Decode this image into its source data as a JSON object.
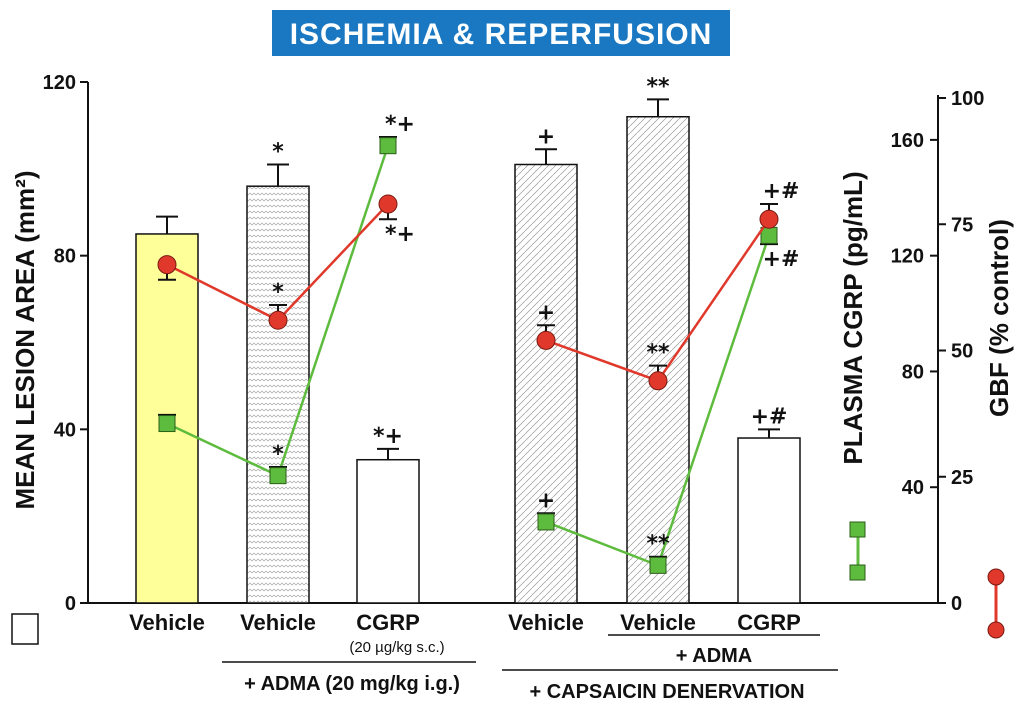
{
  "chart_data": {
    "type": "bar",
    "title": "ISCHEMIA & REPERFUSION",
    "colors": {
      "title_bg": "#1a78c2",
      "title_text": "#ffffff",
      "vehicle_bar": "#ffff99",
      "bar_outline": "#111111",
      "red_line": "#e0392b",
      "red_marker": "#e0392b",
      "green_line": "#5dbb3d",
      "green_marker": "#5dbb3d"
    },
    "categories": [
      "Vehicle",
      "Vehicle",
      "CGRP",
      "Vehicle",
      "Vehicle",
      "CGRP"
    ],
    "category_sublabels": [
      "",
      "",
      "(20 µg/kg s.c.)",
      "",
      "",
      ""
    ],
    "group_labels": {
      "adma_dose": "+ ADMA (20 mg/kg i.g.)",
      "adma": "+ ADMA",
      "capsaicin": "+ CAPSAICIN DENERVATION"
    },
    "left_axis": {
      "label": "MEAN LESION AREA (mm²)",
      "ylim": [
        0,
        120
      ],
      "ticks": [
        "0",
        "40",
        "80",
        "120"
      ],
      "tick_values": [
        0,
        40,
        80,
        120
      ]
    },
    "right_axis_cgrp": {
      "label": "PLASMA CGRP (pg/mL)",
      "ylim": [
        0,
        180
      ],
      "ticks": [
        "40",
        "80",
        "120",
        "160"
      ],
      "tick_values": [
        40,
        80,
        120,
        160
      ]
    },
    "right_axis_gbf": {
      "label": "GBF (% control)",
      "ylim": [
        0,
        100
      ],
      "ticks": [
        "0",
        "25",
        "50",
        "75",
        "100"
      ],
      "tick_values": [
        0,
        25,
        50,
        75,
        100
      ]
    },
    "series": [
      {
        "name": "Mean lesion area",
        "kind": "bar",
        "axis": "left",
        "values": [
          85,
          96,
          33,
          101,
          112,
          38
        ],
        "errors": [
          4,
          5,
          2.5,
          3.5,
          4,
          2
        ],
        "sig": [
          "",
          "*",
          "*+",
          "+",
          "**",
          "+#"
        ]
      },
      {
        "name": "Plasma CGRP",
        "kind": "line",
        "marker": "square",
        "axis": "right_cgrp",
        "values": [
          62,
          44,
          158,
          28,
          13,
          127
        ],
        "errors": [
          3,
          3,
          3,
          3,
          3,
          3
        ],
        "sig": [
          "",
          "*",
          "*+",
          "+",
          "**",
          "+#"
        ]
      },
      {
        "name": "GBF",
        "kind": "line",
        "marker": "circle",
        "axis": "right_gbf",
        "values": [
          67,
          56,
          79,
          52,
          44,
          76
        ],
        "errors": [
          3,
          3,
          3,
          3,
          3,
          3
        ],
        "sig": [
          "",
          "*",
          "*+",
          "+",
          "**",
          "+#"
        ]
      }
    ],
    "legend": [
      "bar",
      "square",
      "circle"
    ]
  }
}
